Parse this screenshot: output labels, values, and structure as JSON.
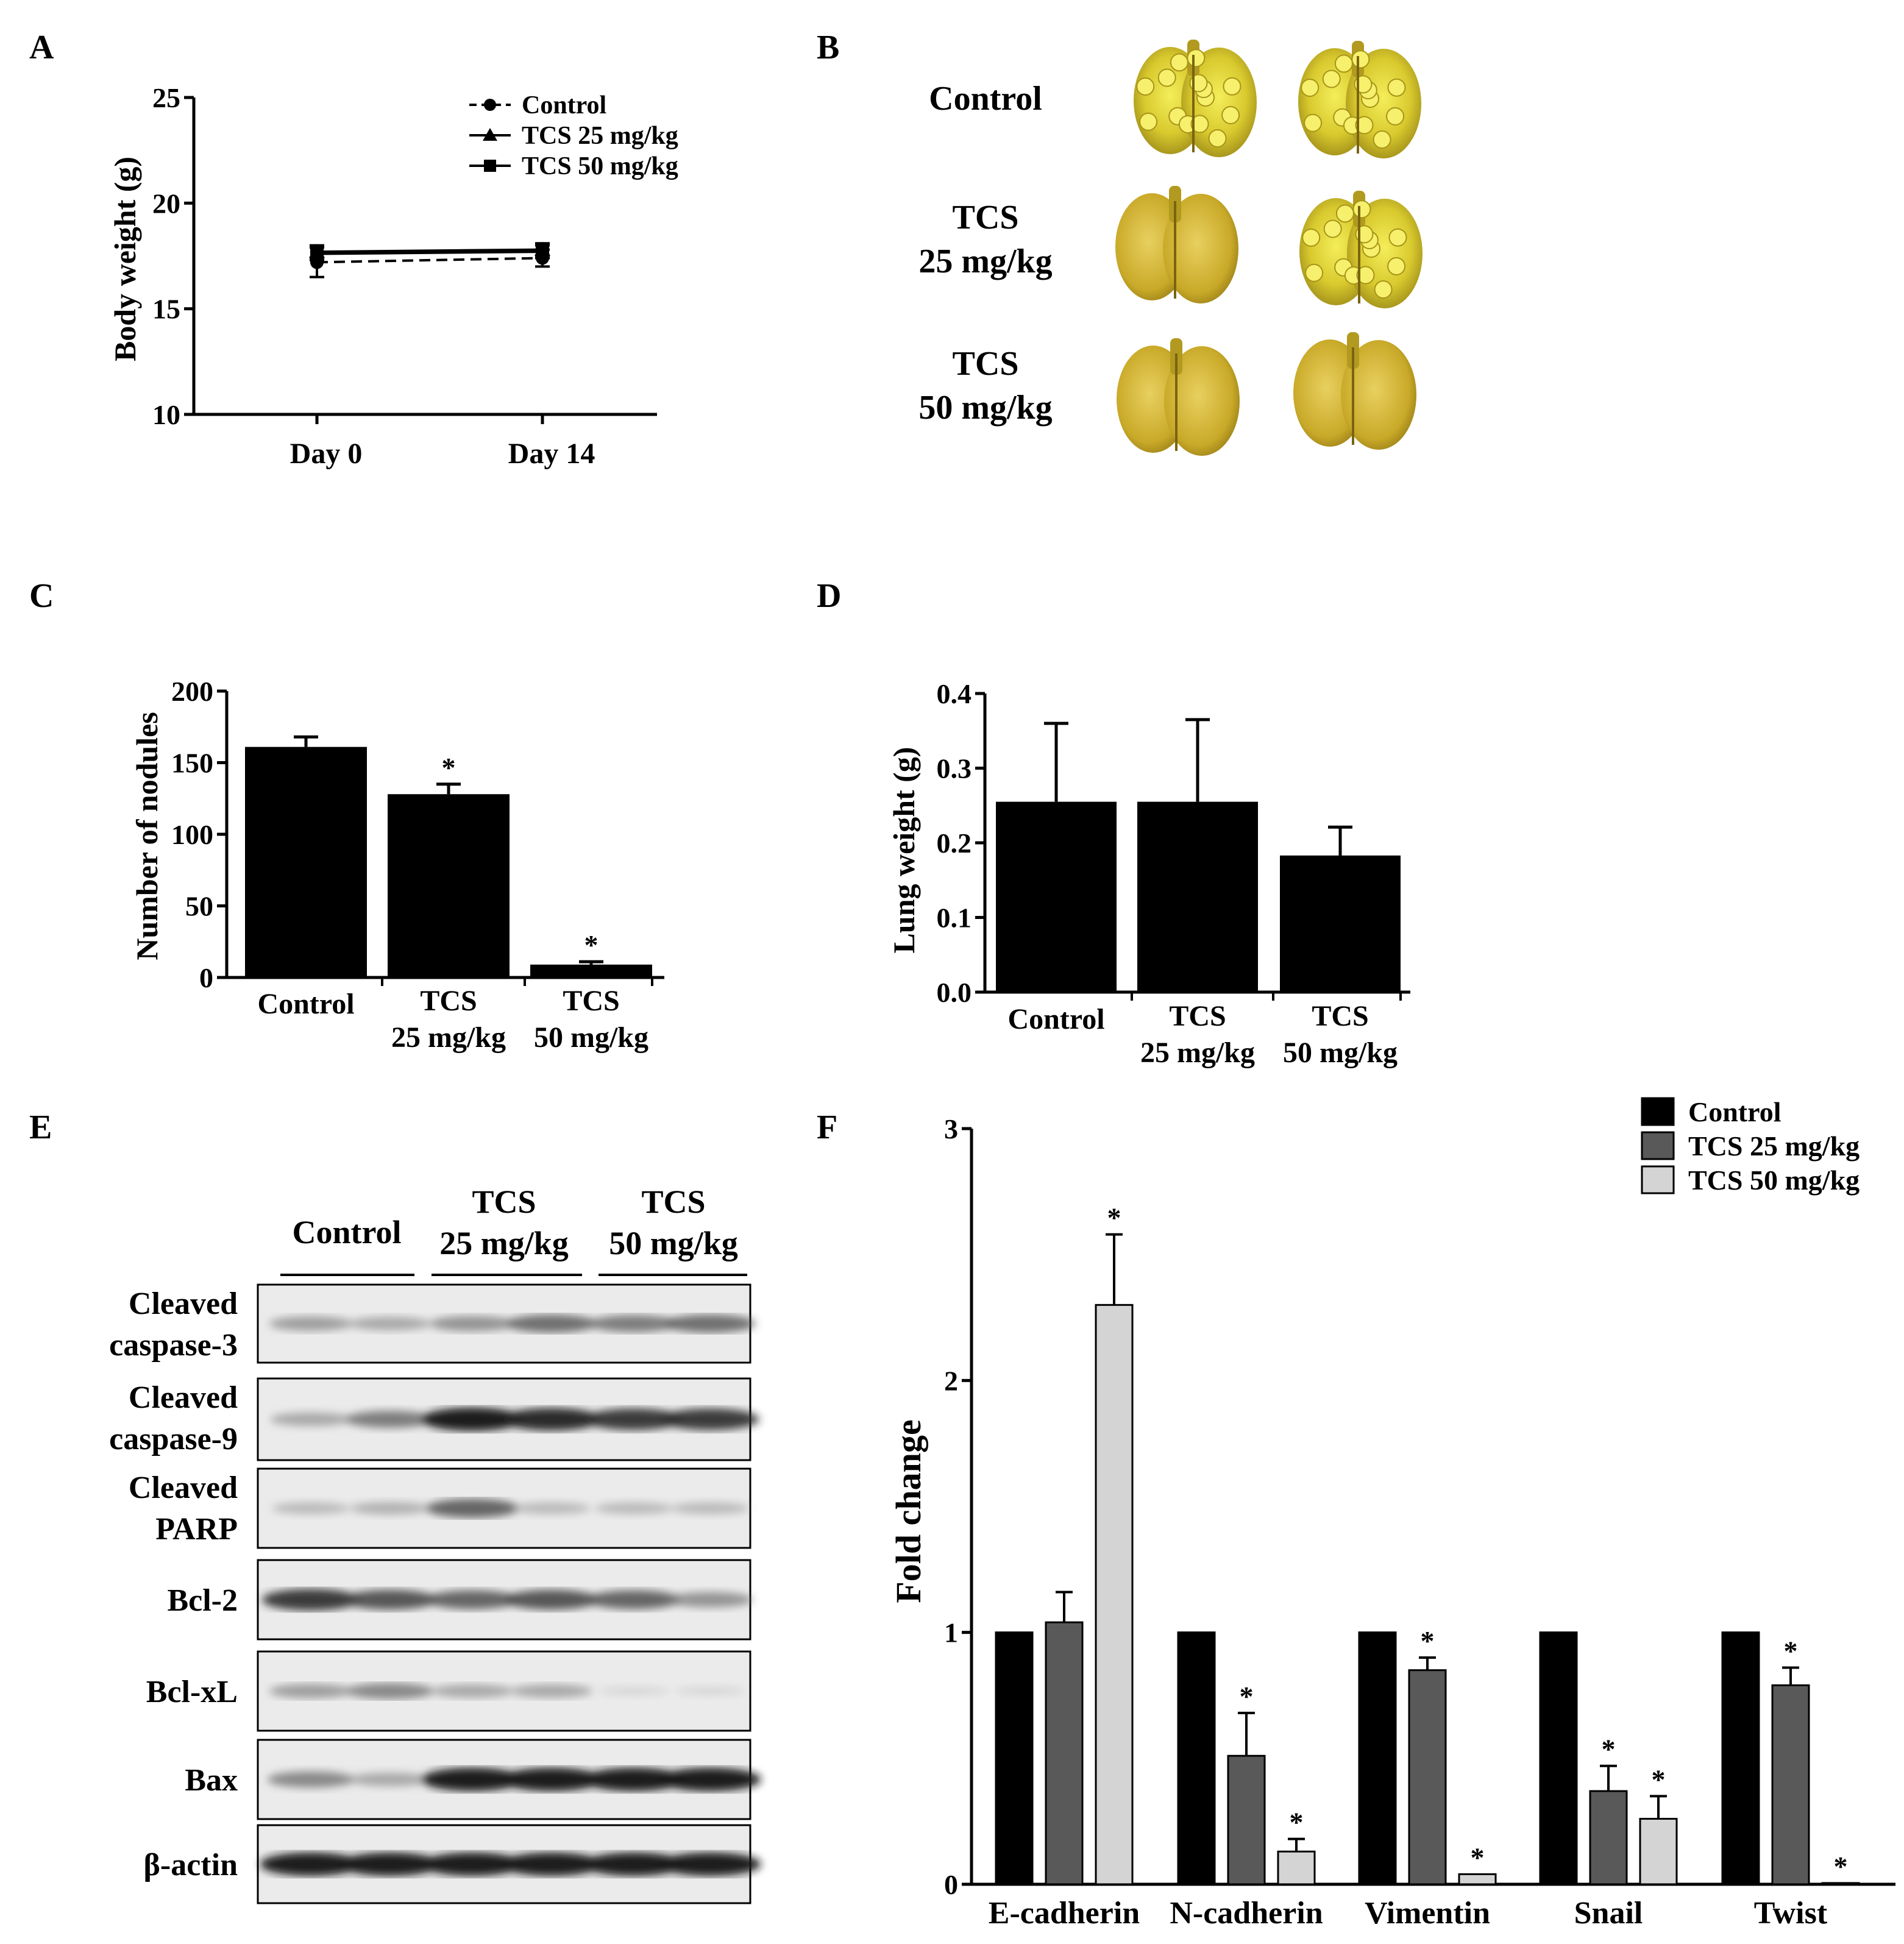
{
  "panels": {
    "A": {
      "label": "A",
      "chart_data": {
        "type": "line",
        "ylabel": "Body weight (g)",
        "xlabel": "",
        "categories": [
          "Day 0",
          "Day 14"
        ],
        "ylim": [
          10,
          25
        ],
        "yticks": [
          "10",
          "15",
          "20",
          "25"
        ],
        "legend_position": "top-right",
        "series": [
          {
            "name": "Control",
            "marker": "circle",
            "line": "dashed",
            "values": [
              17.2,
              17.4
            ],
            "errors": [
              0.7,
              0.4
            ]
          },
          {
            "name": "TCS 25 mg/kg",
            "marker": "triangle",
            "line": "solid",
            "values": [
              17.7,
              17.8
            ],
            "errors": [
              0.3,
              0.3
            ]
          },
          {
            "name": "TCS 50 mg/kg",
            "marker": "square",
            "line": "solid",
            "values": [
              17.6,
              17.7
            ],
            "errors": [
              0.3,
              0.3
            ]
          }
        ]
      }
    },
    "B": {
      "label": "B",
      "rows": [
        {
          "line1": "Control",
          "line2": ""
        },
        {
          "line1": "TCS",
          "line2": "25 mg/kg"
        },
        {
          "line1": "TCS",
          "line2": "50 mg/kg"
        }
      ]
    },
    "C": {
      "label": "C",
      "chart_data": {
        "type": "bar",
        "ylabel": "Number of nodules",
        "categories": [
          [
            "Control",
            ""
          ],
          [
            "TCS",
            "25 mg/kg"
          ],
          [
            "TCS",
            "50 mg/kg"
          ]
        ],
        "values": [
          161,
          128,
          9
        ],
        "errors": [
          7,
          7,
          2
        ],
        "significance": [
          "",
          "*",
          "*"
        ],
        "ylim": [
          0,
          200
        ],
        "yticks": [
          "0",
          "50",
          "100",
          "150",
          "200"
        ],
        "color": "#000000"
      }
    },
    "D": {
      "label": "D",
      "chart_data": {
        "type": "bar",
        "ylabel": "Lung weight (g)",
        "categories": [
          [
            "Control",
            ""
          ],
          [
            "TCS",
            "25 mg/kg"
          ],
          [
            "TCS",
            "50 mg/kg"
          ]
        ],
        "values": [
          0.255,
          0.255,
          0.183
        ],
        "errors": [
          0.105,
          0.11,
          0.038
        ],
        "significance": [
          "",
          "",
          ""
        ],
        "ylim": [
          0,
          0.4
        ],
        "yticks": [
          "0.0",
          "0.1",
          "0.2",
          "0.3",
          "0.4"
        ],
        "color": "#000000"
      }
    },
    "E": {
      "label": "E",
      "groups": [
        {
          "line1": "Control",
          "line2": ""
        },
        {
          "line1": "TCS",
          "line2": "25 mg/kg"
        },
        {
          "line1": "TCS",
          "line2": "50 mg/kg"
        }
      ],
      "blots": [
        {
          "line1": "Cleaved",
          "line2": "caspase-3",
          "intensity": [
            0.45,
            0.4,
            0.5,
            0.65,
            0.6,
            0.65
          ]
        },
        {
          "line1": "Cleaved",
          "line2": "caspase-9",
          "intensity": [
            0.4,
            0.6,
            0.95,
            0.9,
            0.85,
            0.85
          ]
        },
        {
          "line1": "Cleaved",
          "line2": "PARP",
          "intensity": [
            0.3,
            0.35,
            0.7,
            0.3,
            0.3,
            0.3
          ]
        },
        {
          "line1": "Bcl-2",
          "line2": "",
          "intensity": [
            0.85,
            0.75,
            0.7,
            0.75,
            0.7,
            0.5
          ]
        },
        {
          "line1": "Bcl-xL",
          "line2": "",
          "intensity": [
            0.45,
            0.55,
            0.4,
            0.4,
            0.1,
            0.1
          ]
        },
        {
          "line1": "Bax",
          "line2": "",
          "intensity": [
            0.55,
            0.4,
            0.95,
            0.95,
            0.95,
            0.95
          ]
        },
        {
          "line1": "β-actin",
          "line2": "",
          "intensity": [
            0.95,
            0.95,
            0.95,
            0.95,
            0.95,
            0.95
          ]
        }
      ]
    },
    "F": {
      "label": "F",
      "chart_data": {
        "type": "bar",
        "ylabel": "Fold change",
        "categories": [
          "E-cadherin",
          "N-cadherin",
          "Vimentin",
          "Snail",
          "Twist"
        ],
        "ylim": [
          0,
          3
        ],
        "yticks": [
          "0",
          "1",
          "2",
          "3"
        ],
        "legend_position": "top-right",
        "series": [
          {
            "name": "Control",
            "color": "#000000",
            "values": [
              1,
              1,
              1,
              1,
              1
            ],
            "errors": [
              0,
              0,
              0,
              0,
              0
            ],
            "significance": [
              "",
              "",
              "",
              "",
              ""
            ]
          },
          {
            "name": "TCS 25 mg/kg",
            "color": "#595959",
            "values": [
              1.04,
              0.51,
              0.85,
              0.37,
              0.79
            ],
            "errors": [
              0.12,
              0.17,
              0.05,
              0.1,
              0.07
            ],
            "significance": [
              "",
              "*",
              "*",
              "*",
              "*"
            ]
          },
          {
            "name": "TCS 50 mg/kg",
            "color": "#d4d4d4",
            "values": [
              2.3,
              0.13,
              0.04,
              0.26,
              0.005
            ],
            "errors": [
              0.28,
              0.05,
              0.0,
              0.09,
              0.0
            ],
            "significance": [
              "*",
              "*",
              "*",
              "*",
              "*"
            ]
          }
        ]
      }
    }
  }
}
